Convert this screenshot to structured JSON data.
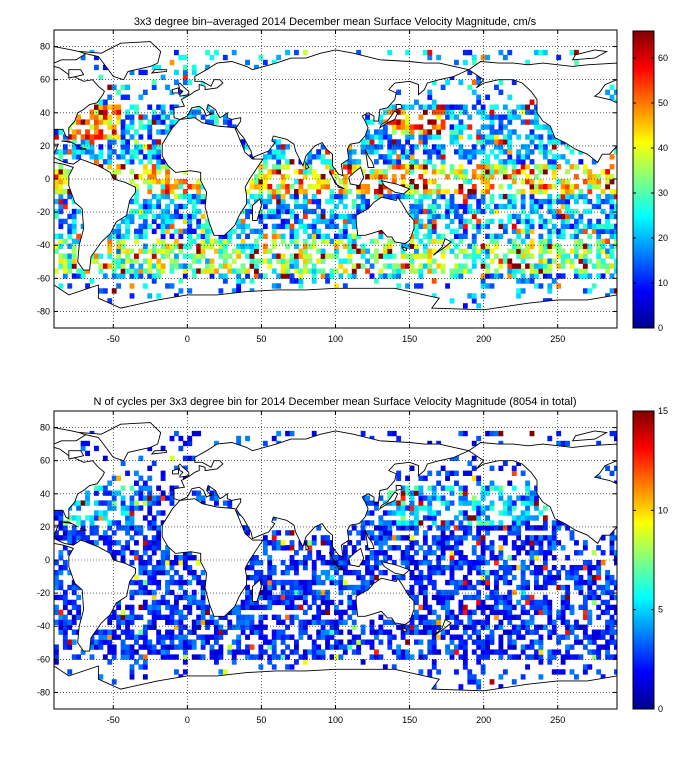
{
  "chart_data": [
    {
      "type": "heatmap",
      "title": "3x3 degree bin–averaged 2014 December mean Surface Velocity Magnitude, cm/s",
      "xlabel": "",
      "ylabel": "",
      "xlim": [
        -90,
        290
      ],
      "ylim": [
        -90,
        90
      ],
      "x_ticks": [
        "-50",
        "0",
        "50",
        "100",
        "150",
        "200",
        "250"
      ],
      "y_ticks": [
        "80",
        "60",
        "40",
        "20",
        "0",
        "-20",
        "-40",
        "-60",
        "-80"
      ],
      "colorbar": {
        "colormap": "jet",
        "range": [
          0,
          66
        ],
        "ticks": [
          "60",
          "50",
          "40",
          "30",
          "20",
          "10",
          "0"
        ]
      },
      "bin_size_deg": 3,
      "grid": true
    },
    {
      "type": "heatmap",
      "title": "N of cycles per 3x3 degree bin for 2014 December mean Surface Velocity Magnitude (8054 in total)",
      "xlabel": "",
      "ylabel": "",
      "xlim": [
        -90,
        290
      ],
      "ylim": [
        -90,
        90
      ],
      "x_ticks": [
        "-50",
        "0",
        "50",
        "100",
        "150",
        "200",
        "250"
      ],
      "y_ticks": [
        "80",
        "60",
        "40",
        "20",
        "0",
        "-20",
        "-40",
        "-60",
        "-80"
      ],
      "colorbar": {
        "colormap": "jet",
        "range": [
          0,
          15
        ],
        "ticks": [
          "15",
          "10",
          "5",
          "0"
        ]
      },
      "bin_size_deg": 3,
      "grid": true
    }
  ]
}
